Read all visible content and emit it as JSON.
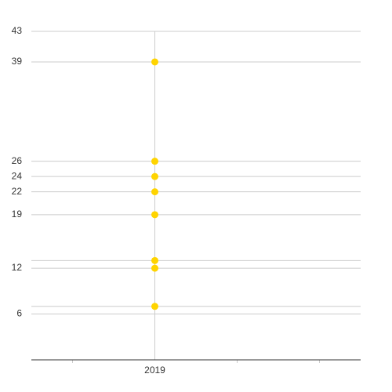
{
  "chart_data": {
    "type": "scatter",
    "categories": [
      null,
      "2019",
      null,
      null
    ],
    "values": [
      null,
      [
        39,
        26,
        24,
        22,
        19,
        13,
        12,
        7
      ],
      null,
      null
    ],
    "color": "#ffd400",
    "ylim": [
      0,
      43
    ],
    "yticks": [
      6,
      12,
      19,
      22,
      24,
      26,
      39,
      43
    ],
    "extra_gridlines": [
      7,
      13
    ],
    "grid": true
  }
}
